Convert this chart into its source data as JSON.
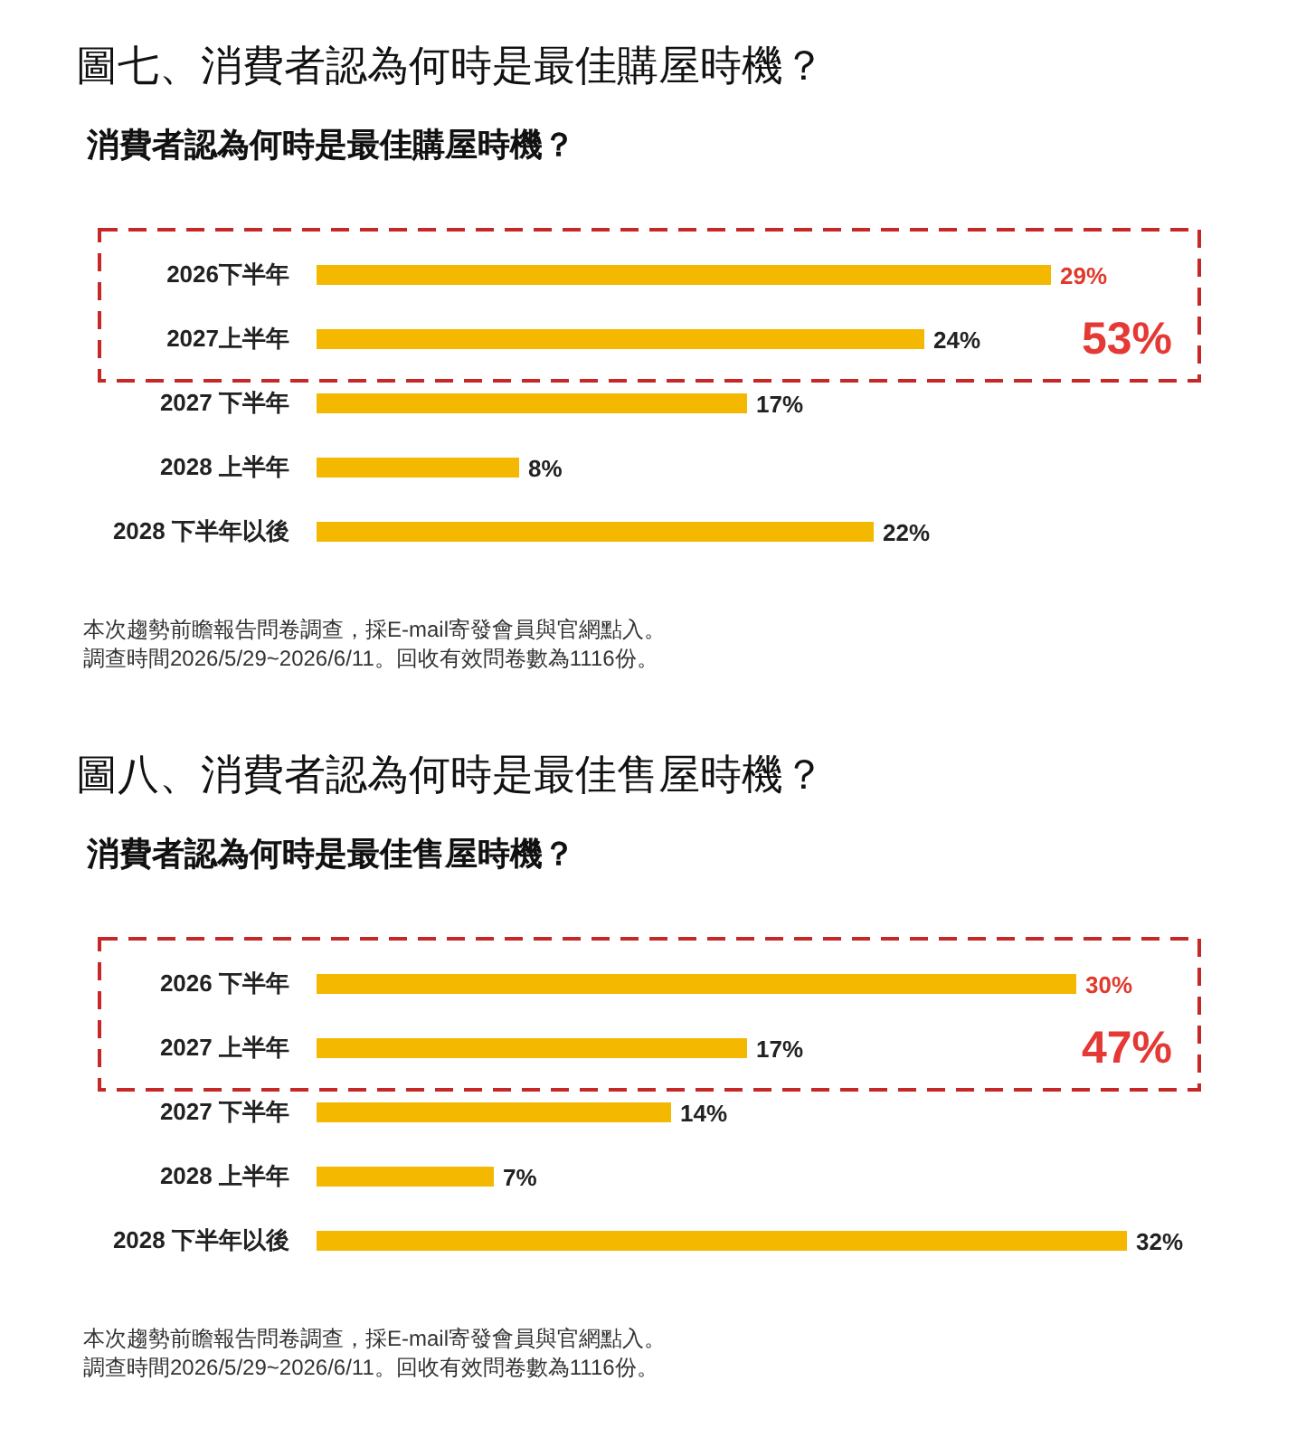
{
  "chart_data": [
    {
      "type": "bar",
      "orientation": "horizontal",
      "title": "圖七、消費者認為何時是最佳購屋時機？",
      "subtitle": "消費者認為何時是最佳購屋時機？",
      "categories": [
        "2026下半年",
        "2027上半年",
        "2027 下半年",
        "2028 上半年",
        "2028 下半年以後"
      ],
      "values": [
        29,
        24,
        17,
        8,
        22
      ],
      "value_labels": [
        "29%",
        "24%",
        "17%",
        "8%",
        "22%"
      ],
      "color": "#f5b800",
      "annotations": [
        "53%",
        "本次趨勢前瞻報告問卷調查，採E-mail寄發會員與官網點入。",
        "調查時間2026/5/29~2026/6/11。回收有效問卷數為1116份。"
      ]
    },
    {
      "type": "bar",
      "orientation": "horizontal",
      "title": "圖八、消費者認為何時是最佳售屋時機？",
      "subtitle": "消費者認為何時是最佳售屋時機？",
      "categories": [
        "2026 下半年",
        "2027 上半年",
        "2027 下半年",
        "2028 上半年",
        "2028 下半年以後"
      ],
      "values": [
        30,
        17,
        14,
        7,
        32
      ],
      "value_labels": [
        "30%",
        "17%",
        "14%",
        "7%",
        "32%"
      ],
      "color": "#f5b800",
      "annotations": [
        "47%",
        "本次趨勢前瞻報告問卷調查，採E-mail寄發會員與官網點入。",
        "調查時間2026/5/29~2026/6/11。回收有效問卷數為1116份。"
      ]
    }
  ]
}
